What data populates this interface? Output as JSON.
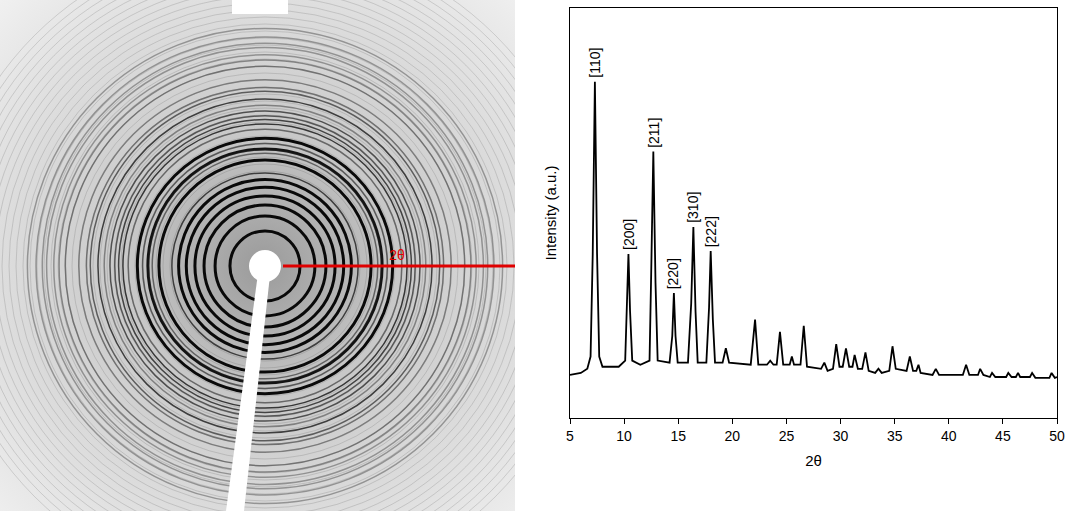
{
  "chart_data": {
    "type": "line",
    "pattern_label": "2θ",
    "x_label": "2θ",
    "y_label": "Intensity (a.u.)",
    "xlim": [
      5,
      50
    ],
    "xticks": [
      5,
      10,
      15,
      20,
      25,
      30,
      35,
      40,
      45,
      50
    ],
    "ylim": [
      0,
      100
    ],
    "tick_labels": "x",
    "grid": false,
    "color": "#000000",
    "x": [
      5.0,
      6.0,
      6.6,
      6.9,
      7.1,
      7.3,
      7.5,
      7.7,
      8.0,
      9.5,
      10.1,
      10.25,
      10.4,
      10.55,
      10.75,
      11.5,
      12.35,
      12.5,
      12.7,
      12.9,
      13.1,
      14.2,
      14.45,
      14.6,
      14.75,
      14.95,
      15.9,
      16.2,
      16.4,
      16.6,
      16.8,
      17.6,
      17.85,
      18.0,
      18.2,
      18.4,
      19.1,
      19.4,
      19.7,
      21.7,
      22.1,
      22.4,
      23.2,
      23.5,
      23.8,
      24.1,
      24.4,
      24.7,
      25.3,
      25.5,
      25.7,
      26.3,
      26.6,
      26.9,
      28.2,
      28.5,
      28.8,
      29.3,
      29.6,
      29.9,
      30.2,
      30.5,
      30.8,
      31.1,
      31.3,
      31.6,
      32.0,
      32.3,
      32.6,
      33.2,
      33.5,
      33.8,
      34.5,
      34.8,
      35.1,
      36.1,
      36.4,
      36.7,
      37.0,
      37.2,
      37.4,
      38.5,
      38.8,
      39.1,
      41.3,
      41.6,
      41.9,
      42.7,
      42.9,
      43.2,
      43.8,
      44.0,
      44.3,
      45.3,
      45.5,
      45.8,
      46.2,
      46.4,
      46.6,
      47.5,
      47.7,
      48.0,
      49.3,
      49.5,
      49.8,
      50.0
    ],
    "values": [
      10.5,
      11,
      12,
      15,
      40,
      82,
      40,
      15,
      12.5,
      12.5,
      14,
      28,
      40,
      26,
      14,
      13,
      14,
      35,
      65,
      33,
      14,
      13.5,
      20,
      30.5,
      20,
      13.5,
      13.5,
      28,
      46.6,
      26,
      13.5,
      13.5,
      27,
      40.7,
      24,
      13.5,
      13.5,
      17,
      13.5,
      13,
      24,
      13,
      13,
      14,
      13,
      13,
      21,
      13,
      13,
      15,
      13,
      13,
      22.5,
      12.5,
      12,
      13.5,
      11.5,
      12,
      18,
      12.5,
      12.5,
      17,
      12.5,
      12.5,
      15.4,
      12,
      12,
      16,
      11.5,
      11,
      12,
      11,
      11.5,
      17.5,
      12,
      11.5,
      15,
      11.5,
      11.5,
      13,
      11,
      10.5,
      12,
      10.5,
      10.5,
      13,
      10.5,
      10.5,
      12,
      10.5,
      10,
      11,
      10,
      10,
      11,
      10,
      10,
      11,
      10,
      10,
      11,
      9.8,
      9.8,
      11,
      9.8,
      10
    ],
    "annotations": [
      {
        "text": "[110]",
        "x": 7.3,
        "y": 82
      },
      {
        "text": "[200]",
        "x": 10.4,
        "y": 40
      },
      {
        "text": "[211]",
        "x": 12.7,
        "y": 65
      },
      {
        "text": "[220]",
        "x": 14.6,
        "y": 30.5
      },
      {
        "text": "[310]",
        "x": 16.4,
        "y": 46.6
      },
      {
        "text": "[222]",
        "x": 18.0,
        "y": 40.7
      }
    ]
  }
}
